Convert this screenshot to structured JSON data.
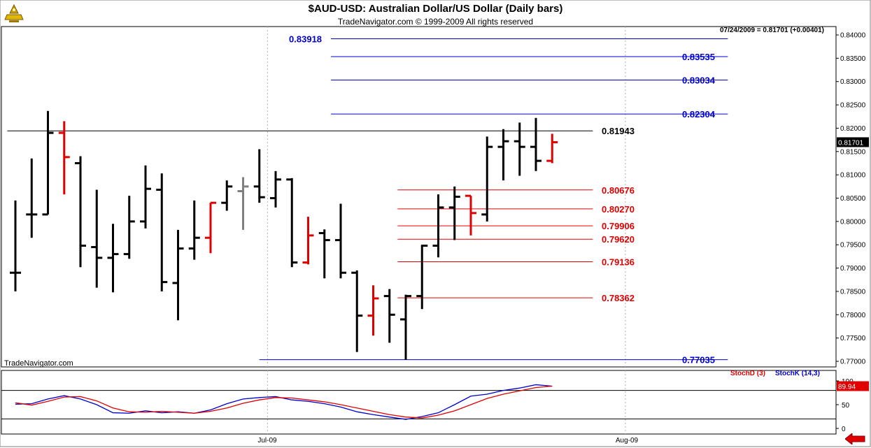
{
  "header": {
    "title": "$AUD-USD:  Australian Dollar/US Dollar  (Daily bars)",
    "subtitle": "TradeNavigator.com © 1999-2009 All rights reserved",
    "quote": "07/24/2009 = 0.81701 (+0.00401)",
    "watermark": "TradeNavigator.com"
  },
  "colors": {
    "up": "#000000",
    "down": "#e00000",
    "neutral": "#808080",
    "blue_level": "#0000cc",
    "red_level": "#e00000",
    "stoch_d": "#e00000",
    "stoch_k": "#0000cc"
  },
  "chart_data": {
    "type": "bar",
    "subtype": "ohlc",
    "ylim": [
      0.7695,
      0.8405
    ],
    "y_ticks": [
      "0.77000",
      "0.77500",
      "0.78000",
      "0.78500",
      "0.79000",
      "0.79500",
      "0.80000",
      "0.80500",
      "0.81000",
      "0.81500",
      "0.82000",
      "0.82500",
      "0.83000",
      "0.83500",
      "0.84000"
    ],
    "x_tick_labels": [
      {
        "label": "Jul-09",
        "after_bar": 15.5
      },
      {
        "label": "Aug-09",
        "after_bar": 37.5
      }
    ],
    "last_price_label": "0.81701",
    "bars": [
      {
        "o": 0.789,
        "h": 0.8045,
        "l": 0.785,
        "c": 0.789,
        "color": "up"
      },
      {
        "o": 0.8015,
        "h": 0.8135,
        "l": 0.7965,
        "c": 0.8015,
        "color": "up"
      },
      {
        "o": 0.8015,
        "h": 0.8237,
        "l": 0.8015,
        "c": 0.819,
        "color": "up"
      },
      {
        "o": 0.819,
        "h": 0.8215,
        "l": 0.8058,
        "c": 0.8138,
        "color": "down"
      },
      {
        "o": 0.8125,
        "h": 0.814,
        "l": 0.7902,
        "c": 0.7948,
        "color": "up"
      },
      {
        "o": 0.7945,
        "h": 0.8068,
        "l": 0.7858,
        "c": 0.7922,
        "color": "up"
      },
      {
        "o": 0.7922,
        "h": 0.7995,
        "l": 0.7848,
        "c": 0.793,
        "color": "up"
      },
      {
        "o": 0.793,
        "h": 0.8055,
        "l": 0.792,
        "c": 0.8,
        "color": "up"
      },
      {
        "o": 0.8,
        "h": 0.812,
        "l": 0.7985,
        "c": 0.807,
        "color": "up"
      },
      {
        "o": 0.8068,
        "h": 0.8103,
        "l": 0.785,
        "c": 0.787,
        "color": "up"
      },
      {
        "o": 0.7868,
        "h": 0.7982,
        "l": 0.7788,
        "c": 0.7942,
        "color": "up"
      },
      {
        "o": 0.7942,
        "h": 0.8045,
        "l": 0.7918,
        "c": 0.7965,
        "color": "up"
      },
      {
        "o": 0.7965,
        "h": 0.804,
        "l": 0.7932,
        "c": 0.804,
        "color": "down"
      },
      {
        "o": 0.804,
        "h": 0.8088,
        "l": 0.8023,
        "c": 0.8075,
        "color": "up"
      },
      {
        "o": 0.8065,
        "h": 0.8095,
        "l": 0.7982,
        "c": 0.8075,
        "color": "neutral"
      },
      {
        "o": 0.8075,
        "h": 0.8155,
        "l": 0.804,
        "c": 0.8052,
        "color": "up"
      },
      {
        "o": 0.805,
        "h": 0.8108,
        "l": 0.803,
        "c": 0.809,
        "color": "up"
      },
      {
        "o": 0.809,
        "h": 0.8093,
        "l": 0.7902,
        "c": 0.7912,
        "color": "up"
      },
      {
        "o": 0.7912,
        "h": 0.801,
        "l": 0.7908,
        "c": 0.797,
        "color": "down"
      },
      {
        "o": 0.7975,
        "h": 0.7983,
        "l": 0.7878,
        "c": 0.796,
        "color": "up"
      },
      {
        "o": 0.796,
        "h": 0.8038,
        "l": 0.7878,
        "c": 0.789,
        "color": "up"
      },
      {
        "o": 0.789,
        "h": 0.7895,
        "l": 0.772,
        "c": 0.7798,
        "color": "up"
      },
      {
        "o": 0.7798,
        "h": 0.7863,
        "l": 0.7755,
        "c": 0.7835,
        "color": "down"
      },
      {
        "o": 0.784,
        "h": 0.7855,
        "l": 0.774,
        "c": 0.78,
        "color": "up"
      },
      {
        "o": 0.779,
        "h": 0.7843,
        "l": 0.7703,
        "c": 0.784,
        "color": "up"
      },
      {
        "o": 0.784,
        "h": 0.795,
        "l": 0.7812,
        "c": 0.7948,
        "color": "up"
      },
      {
        "o": 0.7948,
        "h": 0.8058,
        "l": 0.7923,
        "c": 0.803,
        "color": "up"
      },
      {
        "o": 0.803,
        "h": 0.8075,
        "l": 0.796,
        "c": 0.8053,
        "color": "up"
      },
      {
        "o": 0.8055,
        "h": 0.8055,
        "l": 0.797,
        "c": 0.8018,
        "color": "down"
      },
      {
        "o": 0.8015,
        "h": 0.8182,
        "l": 0.8,
        "c": 0.816,
        "color": "up"
      },
      {
        "o": 0.816,
        "h": 0.8198,
        "l": 0.8088,
        "c": 0.8172,
        "color": "up"
      },
      {
        "o": 0.8172,
        "h": 0.8212,
        "l": 0.8098,
        "c": 0.816,
        "color": "up"
      },
      {
        "o": 0.816,
        "h": 0.8222,
        "l": 0.8108,
        "c": 0.813,
        "color": "up"
      },
      {
        "o": 0.813,
        "h": 0.8188,
        "l": 0.8125,
        "c": 0.817,
        "color": "down"
      }
    ],
    "levels": [
      {
        "label": "0.83918",
        "value": 0.83918,
        "color": "blue",
        "label_side": "left",
        "from_bar": 19.4,
        "to_bar": 43.8
      },
      {
        "label": "0.83535",
        "value": 0.83535,
        "color": "blue",
        "label_side": "right",
        "from_bar": 19.4,
        "to_bar": 43.8
      },
      {
        "label": "0.83034",
        "value": 0.83034,
        "color": "blue",
        "label_side": "right",
        "from_bar": 19.4,
        "to_bar": 43.8
      },
      {
        "label": "0.82304",
        "value": 0.82304,
        "color": "blue",
        "label_side": "right",
        "from_bar": 19.4,
        "to_bar": 43.8
      },
      {
        "label": "0.81943",
        "value": 0.81943,
        "color": "black",
        "label_side": "right",
        "from_bar": -0.5,
        "to_bar": 35.5
      },
      {
        "label": "0.80676",
        "value": 0.80676,
        "color": "red",
        "label_side": "right",
        "from_bar": 23.5,
        "to_bar": 35.5
      },
      {
        "label": "0.80270",
        "value": 0.8027,
        "color": "red",
        "label_side": "right",
        "from_bar": 23.5,
        "to_bar": 35.5
      },
      {
        "label": "0.79906",
        "value": 0.79906,
        "color": "red",
        "label_side": "right",
        "from_bar": 23.5,
        "to_bar": 35.5
      },
      {
        "label": "0.79620",
        "value": 0.7962,
        "color": "red",
        "label_side": "right",
        "from_bar": 23.5,
        "to_bar": 35.5
      },
      {
        "label": "0.79136",
        "value": 0.79136,
        "color": "red",
        "label_side": "right",
        "from_bar": 23.5,
        "to_bar": 35.5
      },
      {
        "label": "0.78362",
        "value": 0.78362,
        "color": "red",
        "label_side": "right",
        "from_bar": 23.5,
        "to_bar": 35.5
      },
      {
        "label": "0.77035",
        "value": 0.77035,
        "color": "blue",
        "label_side": "right",
        "from_bar": 15.0,
        "to_bar": 43.8
      }
    ],
    "stochastic": {
      "d_label": "StochD (3)",
      "k_label": "StochK (14,3)",
      "last_value_label": "89.94",
      "ylim": [
        0,
        100
      ],
      "y_ticks": [
        "0",
        "50",
        "100"
      ],
      "ref_lines": [
        20,
        80
      ],
      "k": [
        51,
        52,
        62,
        69,
        62,
        50,
        33,
        32,
        37,
        33,
        35,
        32,
        39,
        52,
        62,
        65,
        67,
        60,
        57,
        52,
        45,
        35,
        29,
        24,
        19,
        25,
        33,
        50,
        68,
        72,
        80,
        85,
        92,
        89
      ],
      "d": [
        54,
        49,
        57,
        66,
        67,
        58,
        43,
        35,
        34,
        36,
        34,
        32,
        36,
        43,
        53,
        60,
        65,
        64,
        60,
        56,
        50,
        43,
        36,
        29,
        24,
        22,
        28,
        37,
        50,
        63,
        72,
        79,
        86,
        89
      ]
    }
  }
}
